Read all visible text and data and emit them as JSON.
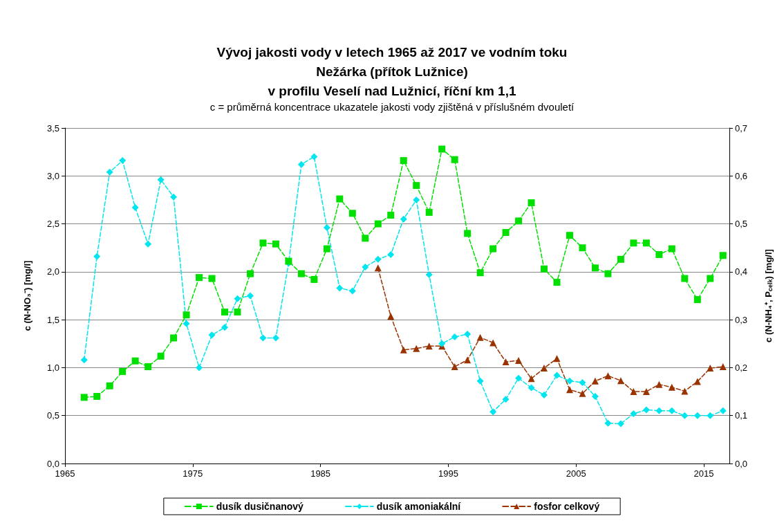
{
  "chart_data": {
    "type": "line",
    "title": "Vývoj jakosti vody v letech 1965 až 2017 ve vodním toku\nNežárka (přítok Lužnice)\nv profilu Veselí nad Lužnicí, říční km 1,1",
    "subtitle": "c = průměrná koncentrace ukazatele jakosti vody zjištěná v příslušném dvouletí",
    "ylabel": "c (N-NO₃⁻) [mg/l]",
    "y2label": "c (N-NH₄⁺, P$_{celk}$) [mg/l]",
    "xlim": [
      1965,
      2017
    ],
    "xticks": [
      1965,
      1975,
      1985,
      1995,
      2005,
      2015
    ],
    "ylim": [
      0,
      3.5
    ],
    "yticks": [
      {
        "value": 0,
        "label": "0,0"
      },
      {
        "value": 0.5,
        "label": "0,5"
      },
      {
        "value": 1,
        "label": "1,0"
      },
      {
        "value": 1.5,
        "label": "1,5"
      },
      {
        "value": 2,
        "label": "2,0"
      },
      {
        "value": 2.5,
        "label": "2,5"
      },
      {
        "value": 3,
        "label": "3,0"
      },
      {
        "value": 3.5,
        "label": "3,5"
      }
    ],
    "y2lim": [
      0,
      0.7
    ],
    "y2ticks": [
      {
        "value": 0,
        "label": "0,0"
      },
      {
        "value": 0.1,
        "label": "0,1"
      },
      {
        "value": 0.2,
        "label": "0,2"
      },
      {
        "value": 0.3,
        "label": "0,3"
      },
      {
        "value": 0.4,
        "label": "0,4"
      },
      {
        "value": 0.5,
        "label": "0,5"
      },
      {
        "value": 0.6,
        "label": "0,6"
      },
      {
        "value": 0.7,
        "label": "0,7"
      }
    ],
    "grid": "y",
    "legend": "bottom",
    "line_style": "dashed",
    "series": [
      {
        "name": "dusík dusičnanový",
        "color": "#00e000",
        "marker": "square",
        "x": [
          1966.5,
          1967.5,
          1968.5,
          1969.5,
          1970.5,
          1971.5,
          1972.5,
          1973.5,
          1974.5,
          1975.5,
          1976.5,
          1977.5,
          1978.5,
          1979.5,
          1980.5,
          1981.5,
          1982.5,
          1983.5,
          1984.5,
          1985.5,
          1986.5,
          1987.5,
          1988.5,
          1989.5,
          1990.5,
          1991.5,
          1992.5,
          1993.5,
          1994.5,
          1995.5,
          1996.5,
          1997.5,
          1998.5,
          1999.5,
          2000.5,
          2001.5,
          2002.5,
          2003.5,
          2004.5,
          2005.5,
          2006.5,
          2007.5,
          2008.5,
          2009.5,
          2010.5,
          2011.5,
          2012.5,
          2013.5,
          2014.5,
          2015.5,
          2016.5
        ],
        "values": [
          0.69,
          0.7,
          0.81,
          0.96,
          1.07,
          1.01,
          1.12,
          1.31,
          1.55,
          1.94,
          1.93,
          1.58,
          1.58,
          1.98,
          2.3,
          2.29,
          2.11,
          1.98,
          1.92,
          2.24,
          2.76,
          2.61,
          2.35,
          2.5,
          2.59,
          3.16,
          2.9,
          2.62,
          3.28,
          3.17,
          2.4,
          1.99,
          2.24,
          2.41,
          2.53,
          2.72,
          2.03,
          1.89,
          2.38,
          2.25,
          2.04,
          1.98,
          2.13,
          2.3,
          2.3,
          2.18,
          2.24,
          1.93,
          1.71,
          1.93,
          2.17
        ]
      },
      {
        "name": "dusík amoniakální",
        "color": "#00e5ee",
        "marker": "diamond",
        "axis": "y2",
        "x": [
          1966.5,
          1967.5,
          1968.5,
          1969.5,
          1970.5,
          1971.5,
          1972.5,
          1973.5,
          1974.5,
          1975.5,
          1976.5,
          1977.5,
          1978.5,
          1979.5,
          1980.5,
          1981.5,
          1982.5,
          1983.5,
          1984.5,
          1985.5,
          1986.5,
          1987.5,
          1988.5,
          1989.5,
          1990.5,
          1991.5,
          1992.5,
          1993.5,
          1994.5,
          1995.5,
          1996.5,
          1997.5,
          1998.5,
          1999.5,
          2000.5,
          2001.5,
          2002.5,
          2003.5,
          2004.5,
          2005.5,
          2006.5,
          2007.5,
          2008.5,
          2009.5,
          2010.5,
          2011.5,
          2012.5,
          2013.5,
          2014.5,
          2015.5,
          2016.5
        ],
        "values": [
          0.216,
          0.432,
          0.608,
          0.632,
          0.534,
          0.458,
          0.592,
          0.556,
          0.292,
          0.2,
          0.268,
          0.284,
          0.344,
          0.35,
          0.262,
          0.262,
          0.418,
          0.624,
          0.64,
          0.492,
          0.366,
          0.36,
          0.41,
          0.426,
          0.436,
          0.51,
          0.55,
          0.394,
          0.25,
          0.264,
          0.27,
          0.172,
          0.108,
          0.134,
          0.178,
          0.158,
          0.143,
          0.184,
          0.172,
          0.169,
          0.14,
          0.084,
          0.083,
          0.104,
          0.112,
          0.11,
          0.11,
          0.1,
          0.1,
          0.1,
          0.11
        ]
      },
      {
        "name": "fosfor celkový",
        "color": "#993300",
        "marker": "triangle",
        "axis": "y2",
        "x": [
          1989.5,
          1990.5,
          1991.5,
          1992.5,
          1993.5,
          1994.5,
          1995.5,
          1996.5,
          1997.5,
          1998.5,
          1999.5,
          2000.5,
          2001.5,
          2002.5,
          2003.5,
          2004.5,
          2005.5,
          2006.5,
          2007.5,
          2008.5,
          2009.5,
          2010.5,
          2011.5,
          2012.5,
          2013.5,
          2014.5,
          2015.5,
          2016.5
        ],
        "values": [
          0.408,
          0.307,
          0.237,
          0.24,
          0.245,
          0.245,
          0.202,
          0.216,
          0.263,
          0.252,
          0.212,
          0.215,
          0.177,
          0.199,
          0.219,
          0.154,
          0.146,
          0.172,
          0.183,
          0.173,
          0.15,
          0.15,
          0.165,
          0.159,
          0.151,
          0.171,
          0.199,
          0.202
        ]
      }
    ]
  }
}
